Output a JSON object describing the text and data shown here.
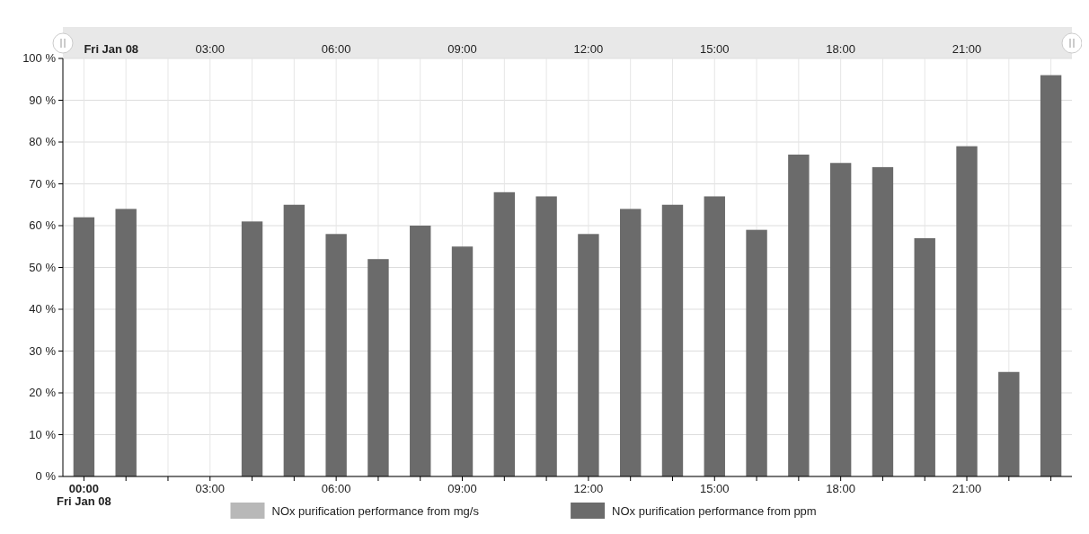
{
  "chart_data": {
    "type": "bar",
    "x": [
      0,
      1,
      4,
      5,
      6,
      7,
      8,
      9,
      10,
      11,
      12,
      13,
      14,
      15,
      16,
      17,
      18,
      19,
      20,
      21,
      22,
      23
    ],
    "series": [
      {
        "name": "NOx purification performance from mg/s",
        "color": "#b8b8b8",
        "values": [
          null,
          null,
          null,
          null,
          null,
          null,
          null,
          null,
          null,
          null,
          null,
          null,
          null,
          null,
          null,
          null,
          null,
          null,
          null,
          null,
          null,
          null
        ]
      },
      {
        "name": "NOx purification performance from ppm",
        "color": "#6b6b6b",
        "values": [
          62,
          64,
          61,
          65,
          58,
          52,
          60,
          55,
          68,
          67,
          58,
          64,
          65,
          67,
          59,
          77,
          75,
          74,
          57,
          79,
          25,
          96
        ]
      }
    ],
    "xlim": [
      -0.5,
      23.5
    ],
    "xticks": [
      {
        "value": 0,
        "label": "00:00\nFri Jan 08"
      },
      {
        "value": 1,
        "label": null
      },
      {
        "value": 2,
        "label": null
      },
      {
        "value": 3,
        "label": "03:00"
      },
      {
        "value": 4,
        "label": null
      },
      {
        "value": 5,
        "label": null
      },
      {
        "value": 6,
        "label": "06:00"
      },
      {
        "value": 7,
        "label": null
      },
      {
        "value": 8,
        "label": null
      },
      {
        "value": 9,
        "label": "09:00"
      },
      {
        "value": 10,
        "label": null
      },
      {
        "value": 11,
        "label": null
      },
      {
        "value": 12,
        "label": "12:00"
      },
      {
        "value": 13,
        "label": null
      },
      {
        "value": 14,
        "label": null
      },
      {
        "value": 15,
        "label": "15:00"
      },
      {
        "value": 16,
        "label": null
      },
      {
        "value": 17,
        "label": null
      },
      {
        "value": 18,
        "label": "18:00"
      },
      {
        "value": 19,
        "label": null
      },
      {
        "value": 20,
        "label": null
      },
      {
        "value": 21,
        "label": "21:00"
      },
      {
        "value": 22,
        "label": null
      },
      {
        "value": 23,
        "label": null
      }
    ],
    "x2lim": [
      -0.5,
      23.5
    ],
    "x2ticks": [
      {
        "value": 0,
        "label": "Fri Jan 08"
      },
      {
        "value": 3,
        "label": "03:00"
      },
      {
        "value": 6,
        "label": "06:00"
      },
      {
        "value": 9,
        "label": "09:00"
      },
      {
        "value": 12,
        "label": "12:00"
      },
      {
        "value": 15,
        "label": "15:00"
      },
      {
        "value": 18,
        "label": "18:00"
      },
      {
        "value": 21,
        "label": "21:00"
      }
    ],
    "ylim": [
      0,
      100
    ],
    "yticks": [
      {
        "value": 0,
        "label": "0 %"
      },
      {
        "value": 10,
        "label": "10 %"
      },
      {
        "value": 20,
        "label": "20 %"
      },
      {
        "value": 30,
        "label": "30 %"
      },
      {
        "value": 40,
        "label": "40 %"
      },
      {
        "value": 50,
        "label": "50 %"
      },
      {
        "value": 60,
        "label": "60 %"
      },
      {
        "value": 70,
        "label": "70 %"
      },
      {
        "value": 80,
        "label": "80 %"
      },
      {
        "value": 90,
        "label": "90 %"
      },
      {
        "value": 100,
        "label": "100 %"
      }
    ],
    "grid": true,
    "legend": "bottom"
  }
}
